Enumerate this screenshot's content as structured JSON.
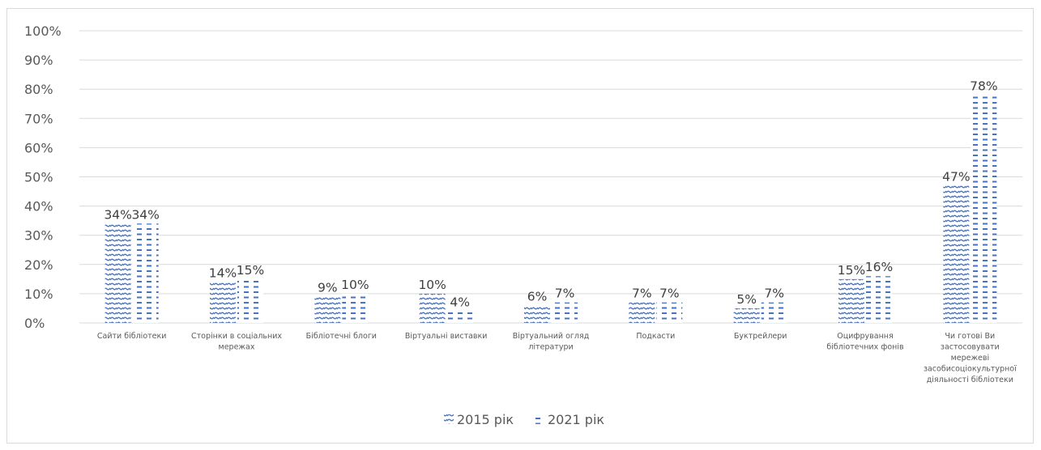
{
  "chart_data": {
    "type": "bar",
    "title": "",
    "xlabel": "",
    "ylabel": "",
    "ylim": [
      0,
      100
    ],
    "yticks": [
      "0%",
      "10%",
      "20%",
      "30%",
      "40%",
      "50%",
      "60%",
      "70%",
      "80%",
      "90%",
      "100%"
    ],
    "categories": [
      [
        "Сайти  бібліотеки"
      ],
      [
        "Сторінки  в  соціальних",
        "мережах"
      ],
      [
        "Бібліотечні  блоги"
      ],
      [
        "Віртуальні  виставки"
      ],
      [
        "Віртуальний  огляд",
        "літератури"
      ],
      [
        "Подкасти"
      ],
      [
        "Буктрейлери"
      ],
      [
        "Оцифрування",
        "бібліотечних  фонів"
      ],
      [
        "Чи готові  Ви",
        "застосовувати",
        "мережеві",
        "засобисоціокультурної",
        "діяльності  бібліотеки"
      ]
    ],
    "series": [
      {
        "name": "2015 рік",
        "values": [
          34,
          14,
          9,
          10,
          6,
          7,
          5,
          15,
          47
        ],
        "labels": [
          "34%",
          "14%",
          "9%",
          "10%",
          "6%",
          "7%",
          "5%",
          "15%",
          "47%"
        ]
      },
      {
        "name": "2021 рік",
        "values": [
          34,
          15,
          10,
          4,
          7,
          7,
          7,
          16,
          78
        ],
        "labels": [
          "34%",
          "15%",
          "10%",
          "4%",
          "7%",
          "7%",
          "7%",
          "16%",
          "78%"
        ]
      }
    ],
    "grid": true,
    "legend_position": "bottom",
    "colors": {
      "bar": "#4472c4",
      "grid": "#d9d9d9",
      "text": "#595959"
    }
  }
}
